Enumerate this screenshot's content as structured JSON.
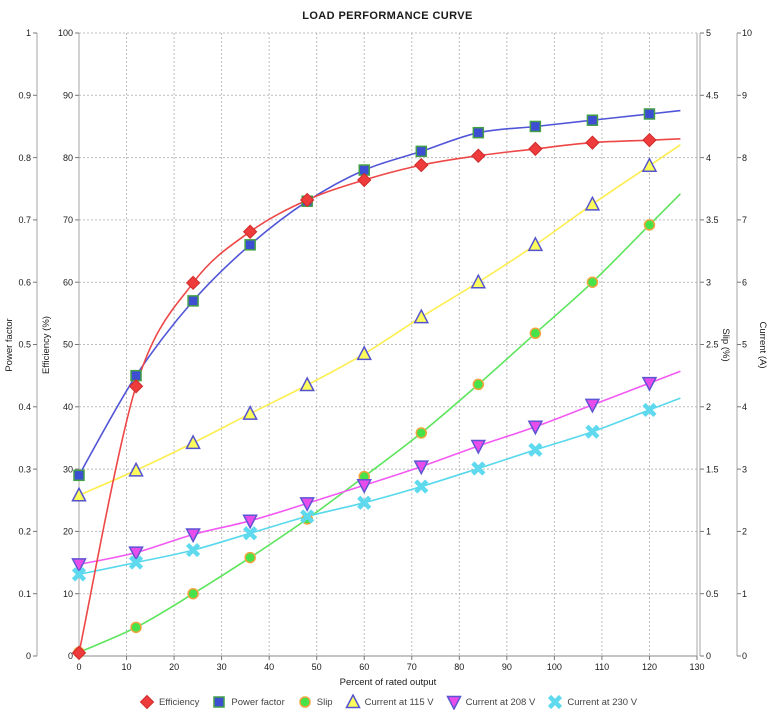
{
  "title": "LOAD PERFORMANCE CURVE",
  "chart_data": {
    "type": "line",
    "title": "LOAD PERFORMANCE CURVE",
    "xlabel": "Percent of rated output",
    "grid": true,
    "legend_position": "bottom",
    "x_axis": {
      "min": 0,
      "max": 130,
      "ticks": [
        0,
        10,
        20,
        30,
        40,
        50,
        60,
        70,
        80,
        90,
        100,
        110,
        120,
        130
      ]
    },
    "x": [
      0,
      12,
      24,
      36,
      48,
      60,
      72,
      84,
      96,
      108,
      120
    ],
    "axes": [
      {
        "id": "power_factor",
        "label": "Power factor",
        "side": "left-outer",
        "min": 0,
        "max": 1,
        "ticks": [
          0,
          0.1,
          0.2,
          0.3,
          0.4,
          0.5,
          0.6,
          0.7,
          0.8,
          0.9,
          1
        ]
      },
      {
        "id": "efficiency",
        "label": "Efficiency (%)",
        "side": "left-inner",
        "min": 0,
        "max": 100,
        "ticks": [
          0,
          10,
          20,
          30,
          40,
          50,
          60,
          70,
          80,
          90,
          100
        ]
      },
      {
        "id": "slip",
        "label": "Slip (%)",
        "side": "right-inner",
        "min": 0,
        "max": 5,
        "ticks": [
          0,
          0.5,
          1,
          1.5,
          2,
          2.5,
          3,
          3.5,
          4,
          4.5,
          5
        ]
      },
      {
        "id": "current",
        "label": "Current (A)",
        "side": "right-outer",
        "min": 0,
        "max": 10,
        "ticks": [
          0,
          1,
          2,
          3,
          4,
          5,
          6,
          7,
          8,
          9,
          10
        ]
      }
    ],
    "series": [
      {
        "name": "Efficiency",
        "axis": "efficiency",
        "marker": "diamond",
        "color": "#ee4747",
        "marker_fill": "#ee3b3b",
        "marker_stroke": "#d02b2b",
        "values": [
          0.5,
          43.3,
          59.9,
          68.1,
          73.2,
          76.4,
          78.8,
          80.3,
          81.4,
          82.4,
          82.8
        ]
      },
      {
        "name": "Power factor",
        "axis": "power_factor",
        "marker": "square",
        "color": "#5156d8",
        "marker_fill": "#3d4ed2",
        "marker_stroke": "#43a047",
        "values": [
          0.29,
          0.45,
          0.57,
          0.66,
          0.73,
          0.78,
          0.81,
          0.84,
          0.85,
          0.86,
          0.87
        ]
      },
      {
        "name": "Slip",
        "axis": "slip",
        "marker": "circle",
        "color": "#5be55b",
        "marker_fill": "#46e24a",
        "marker_stroke": "#f2a43c",
        "values": [
          0.03,
          0.23,
          0.5,
          0.79,
          1.1,
          1.44,
          1.79,
          2.18,
          2.59,
          3.0,
          3.46
        ]
      },
      {
        "name": "Current at 115 V",
        "axis": "current",
        "marker": "triangle-up",
        "color": "#fdee50",
        "marker_fill": "#fcfc5a",
        "marker_stroke": "#5353cf",
        "values": [
          2.58,
          2.98,
          3.42,
          3.89,
          4.35,
          4.85,
          5.44,
          6.0,
          6.6,
          7.25,
          7.87
        ]
      },
      {
        "name": "Current at 208 V",
        "axis": "current",
        "marker": "triangle-down",
        "color": "#f35af3",
        "marker_fill": "#e84deb",
        "marker_stroke": "#5c55d4",
        "values": [
          1.47,
          1.66,
          1.95,
          2.17,
          2.45,
          2.74,
          3.04,
          3.37,
          3.68,
          4.03,
          4.38
        ]
      },
      {
        "name": "Current at 230 V",
        "axis": "current",
        "marker": "x",
        "color": "#57d8ec",
        "marker_fill": "#5ed9ee",
        "marker_stroke": "#5ed9ee",
        "values": [
          1.31,
          1.5,
          1.7,
          1.97,
          2.24,
          2.46,
          2.72,
          3.01,
          3.31,
          3.6,
          3.95
        ]
      }
    ]
  }
}
